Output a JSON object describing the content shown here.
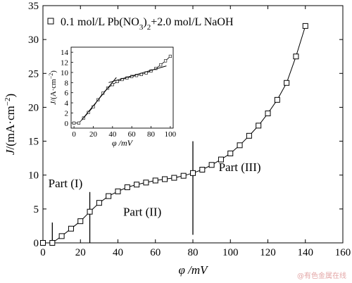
{
  "chart_data": [
    {
      "type": "line",
      "xlabel": "φ /mV",
      "ylabel": "J/(mA·cm⁻²)",
      "xlim": [
        0,
        160
      ],
      "ylim": [
        0,
        35
      ],
      "xticks": [
        0,
        20,
        40,
        60,
        80,
        100,
        120,
        140,
        160
      ],
      "yticks": [
        0,
        5,
        10,
        15,
        20,
        25,
        30,
        35
      ],
      "grid": false,
      "legend_position": "top",
      "legend": {
        "marker": "square",
        "label_main": "0.1 mol/L Pb(NO",
        "label_sub1": "3",
        "label_mid": ")",
        "label_sub2": "2",
        "label_tail": "+2.0 mol/L NaOH"
      },
      "series": [
        {
          "marker": "square",
          "x": [
            0,
            5,
            10,
            15,
            20,
            25,
            30,
            35,
            40,
            45,
            50,
            55,
            60,
            65,
            70,
            75,
            80,
            85,
            90,
            95,
            100,
            105,
            110,
            115,
            120,
            125,
            130,
            135,
            140
          ],
          "y": [
            0,
            0,
            1.0,
            2.1,
            3.2,
            4.6,
            5.9,
            6.9,
            7.6,
            8.2,
            8.6,
            8.9,
            9.2,
            9.4,
            9.6,
            9.9,
            10.3,
            10.8,
            11.5,
            12.3,
            13.2,
            14.4,
            15.8,
            17.3,
            19.1,
            21.1,
            23.6,
            27.5,
            32.0
          ]
        }
      ],
      "annotations": [
        {
          "text": "Part (I)",
          "x": 12,
          "y": 8.2
        },
        {
          "text": "Part (II)",
          "x": 53,
          "y": 4.0
        },
        {
          "text": "Part (III)",
          "x": 105,
          "y": 10.6
        }
      ],
      "divider_lines": [
        {
          "x": 5,
          "y_from": 0,
          "y_to": 3
        },
        {
          "x": 25,
          "y_from": 0,
          "y_to": 7.5
        },
        {
          "x": 80,
          "y_from": 1.2,
          "y_to": 15
        }
      ]
    },
    {
      "type": "line",
      "role": "inset",
      "xlabel": "φ /mV",
      "ylabel": "J/(A·cm⁻²)",
      "xlim": [
        -3,
        103
      ],
      "ylim": [
        -1,
        15
      ],
      "xticks": [
        0,
        20,
        40,
        60,
        80,
        100
      ],
      "yticks": [
        0,
        2,
        4,
        6,
        8,
        10,
        12,
        14
      ],
      "series": [
        {
          "marker": "square",
          "x": [
            0,
            5,
            10,
            15,
            20,
            25,
            30,
            35,
            40,
            45,
            50,
            55,
            60,
            65,
            70,
            75,
            80,
            85,
            90,
            95,
            100
          ],
          "y": [
            0,
            0,
            1.0,
            2.1,
            3.2,
            4.6,
            5.9,
            6.9,
            7.6,
            8.2,
            8.6,
            8.9,
            9.2,
            9.4,
            9.6,
            9.9,
            10.3,
            10.8,
            11.5,
            12.3,
            13.2
          ]
        }
      ],
      "fit_lines": [
        {
          "x": [
            8,
            44
          ],
          "y": [
            0.6,
            9.0
          ]
        },
        {
          "x": [
            36,
            96
          ],
          "y": [
            8.0,
            11.3
          ]
        }
      ]
    }
  ],
  "watermark": "@有色金属在线"
}
